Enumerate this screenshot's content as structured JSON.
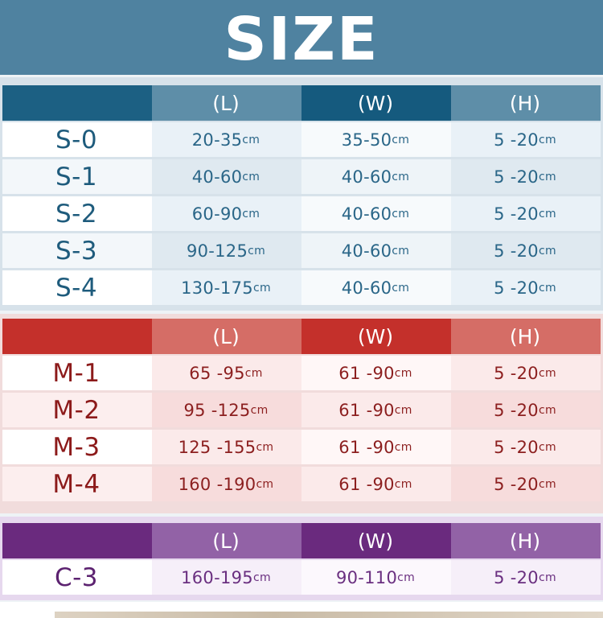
{
  "title": "SIZE",
  "headers": [
    "(L)",
    "(W)",
    "(H)"
  ],
  "unit": "cm",
  "tables": {
    "s": {
      "colors": {
        "header_dark": "#1c6083",
        "header_light": "#5e8ea8",
        "text": "#1e5b7c"
      },
      "rows": [
        {
          "size": "S-0",
          "l": "20-35",
          "w": "35-50",
          "h": "5 -20"
        },
        {
          "size": "S-1",
          "l": "40-60",
          "w": "40-60",
          "h": "5 -20"
        },
        {
          "size": "S-2",
          "l": "60-90",
          "w": "40-60",
          "h": "5 -20"
        },
        {
          "size": "S-3",
          "l": "90-125",
          "w": "40-60",
          "h": "5 -20"
        },
        {
          "size": "S-4",
          "l": "130-175",
          "w": "40-60",
          "h": "5 -20"
        }
      ]
    },
    "m": {
      "colors": {
        "header_dark": "#c4302b",
        "header_light": "#d56d66",
        "text": "#8c1a1a"
      },
      "rows": [
        {
          "size": "M-1",
          "l": "65 -95",
          "w": "61 -90",
          "h": "5 -20"
        },
        {
          "size": "M-2",
          "l": "95 -125",
          "w": "61 -90",
          "h": "5 -20"
        },
        {
          "size": "M-3",
          "l": "125 -155",
          "w": "61 -90",
          "h": "5 -20"
        },
        {
          "size": "M-4",
          "l": "160 -190",
          "w": "61 -90",
          "h": "5 -20"
        }
      ]
    },
    "c": {
      "colors": {
        "header_dark": "#6a2a7e",
        "header_light": "#9262a6",
        "text": "#5c2270"
      },
      "rows": [
        {
          "size": "C-3",
          "l": "160-195",
          "w": "90-110",
          "h": "5 -20"
        }
      ]
    }
  }
}
